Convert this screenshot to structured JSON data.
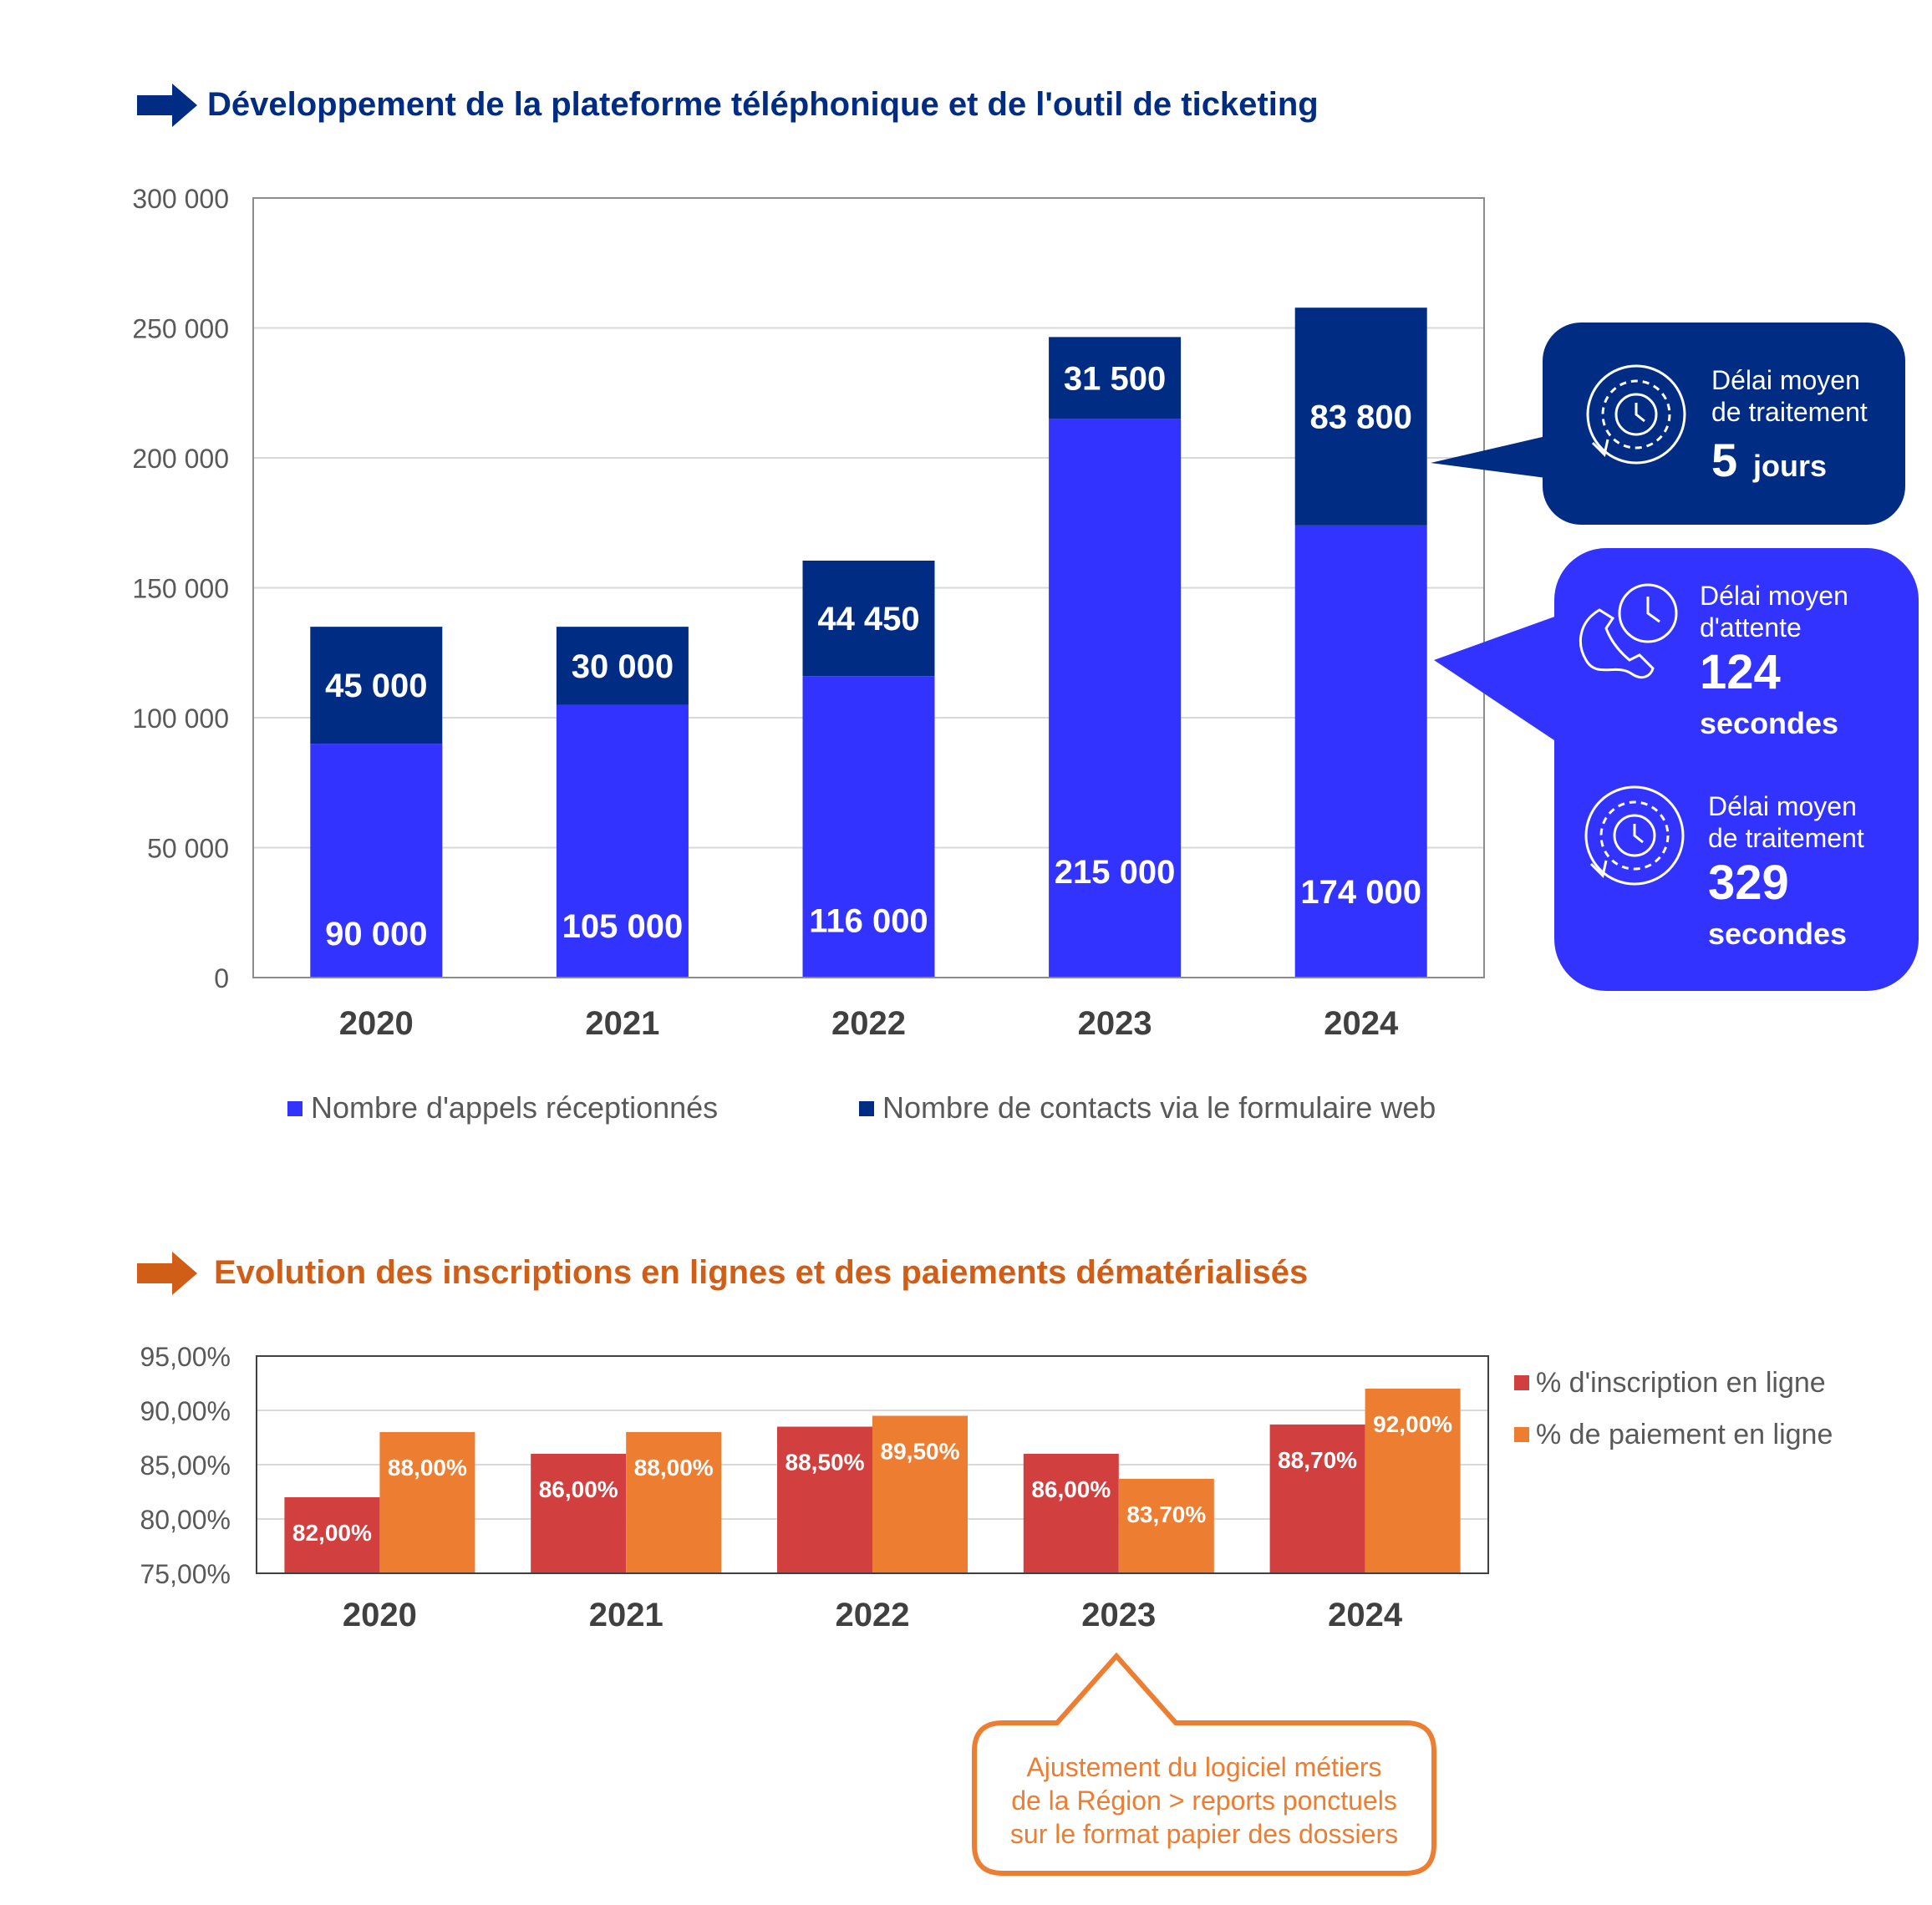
{
  "colors": {
    "navy": "#002C84",
    "calls_blue": "#3333FF",
    "orange": "#ED7D31",
    "red": "#D13F3F",
    "title_orange": "#D05E16",
    "axis_text": "#595959",
    "grid": "#D9D9D9"
  },
  "chart_data": [
    {
      "type": "bar",
      "stacked": true,
      "title": "Développement de la plateforme téléphonique et de l'outil de ticketing",
      "categories": [
        "2020",
        "2021",
        "2022",
        "2023",
        "2024"
      ],
      "series": [
        {
          "name": "Nombre d'appels réceptionnés",
          "values": [
            90000,
            105000,
            116000,
            215000,
            174000
          ],
          "labels": [
            "90 000",
            "105 000",
            "116 000",
            "215 000",
            "174 000"
          ],
          "color": "#3333FF"
        },
        {
          "name": "Nombre de contacts via le formulaire web",
          "values": [
            45000,
            30000,
            44450,
            31500,
            83800
          ],
          "labels": [
            "45 000",
            "30 000",
            "44 450",
            "31 500",
            "83 800"
          ],
          "color": "#002C84"
        }
      ],
      "ylim": [
        0,
        300000
      ],
      "yticks": [
        0,
        50000,
        100000,
        150000,
        200000,
        250000,
        300000
      ],
      "ytick_labels": [
        "0",
        "50 000",
        "100 000",
        "150 000",
        "200 000",
        "250 000",
        "300 000"
      ],
      "grid": true,
      "legend": "bottom"
    },
    {
      "type": "bar",
      "title": "Evolution des inscriptions en lignes et des paiements dématérialisés",
      "categories": [
        "2020",
        "2021",
        "2022",
        "2023",
        "2024"
      ],
      "series": [
        {
          "name": "% d'inscription en ligne",
          "values": [
            82.0,
            86.0,
            88.5,
            86.0,
            88.7
          ],
          "labels": [
            "82,00%",
            "86,00%",
            "88,50%",
            "86,00%",
            "88,70%"
          ],
          "color": "#D13F3F"
        },
        {
          "name": "% de paiement en ligne",
          "values": [
            88.0,
            88.0,
            89.5,
            83.7,
            92.0
          ],
          "labels": [
            "88,00%",
            "88,00%",
            "89,50%",
            "83,70%",
            "92,00%"
          ],
          "color": "#ED7D31"
        }
      ],
      "ylim": [
        75,
        95
      ],
      "yticks": [
        75,
        80,
        85,
        90,
        95
      ],
      "ytick_labels": [
        "75,00%",
        "80,00%",
        "85,00%",
        "90,00%",
        "95,00%"
      ],
      "grid": true,
      "legend": "right"
    }
  ],
  "callouts": {
    "web_form": {
      "line1": "Délai moyen",
      "line2": "de traitement",
      "value": "5",
      "unit": "jours",
      "icon": "gear-clock-icon"
    },
    "phone_wait": {
      "line1": "Délai moyen",
      "line2": "d'attente",
      "value": "124",
      "unit": "secondes",
      "icon": "phone-clock-icon"
    },
    "phone_treat": {
      "line1": "Délai moyen",
      "line2": "de traitement",
      "value": "329",
      "unit": "secondes",
      "icon": "gear-clock-icon"
    },
    "note": {
      "line1": "Ajustement du logiciel métiers",
      "line2": "de la Région > reports ponctuels",
      "line3": "sur le format papier des dossiers"
    }
  }
}
